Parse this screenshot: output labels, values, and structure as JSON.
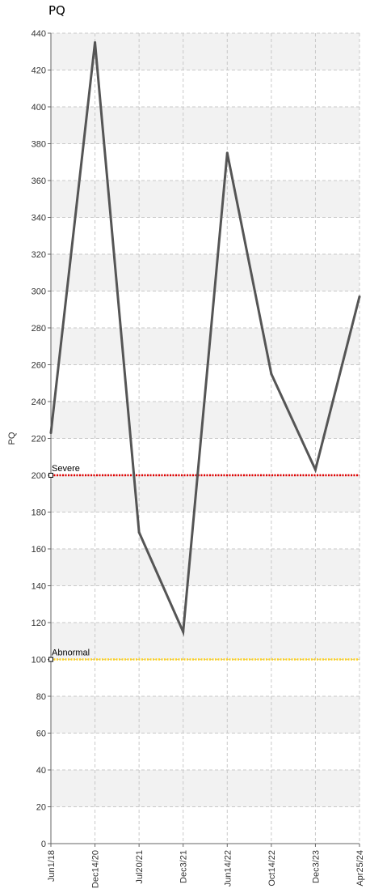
{
  "chart_data": {
    "type": "line",
    "title": "PQ",
    "ylabel": "PQ",
    "xlabel": "",
    "ylim": [
      0,
      440
    ],
    "yticks": [
      0,
      20,
      40,
      60,
      80,
      100,
      120,
      140,
      160,
      180,
      200,
      220,
      240,
      260,
      280,
      300,
      320,
      340,
      360,
      380,
      400,
      420,
      440
    ],
    "categories": [
      "Jun1/18",
      "Dec14/20",
      "Jul20/21",
      "Dec3/21",
      "Jun14/22",
      "Oct14/22",
      "Dec3/23",
      "Apr25/24"
    ],
    "series": [
      {
        "values": [
          223,
          435,
          169,
          115,
          375,
          255,
          203,
          297
        ],
        "color": "#555555"
      }
    ],
    "thresholds": [
      {
        "label": "Severe",
        "value": 200,
        "color": "#e00000"
      },
      {
        "label": "Abnormal",
        "value": 100,
        "color": "#ffd21a"
      }
    ],
    "grid": true,
    "band_color": "#f2f2f2"
  }
}
